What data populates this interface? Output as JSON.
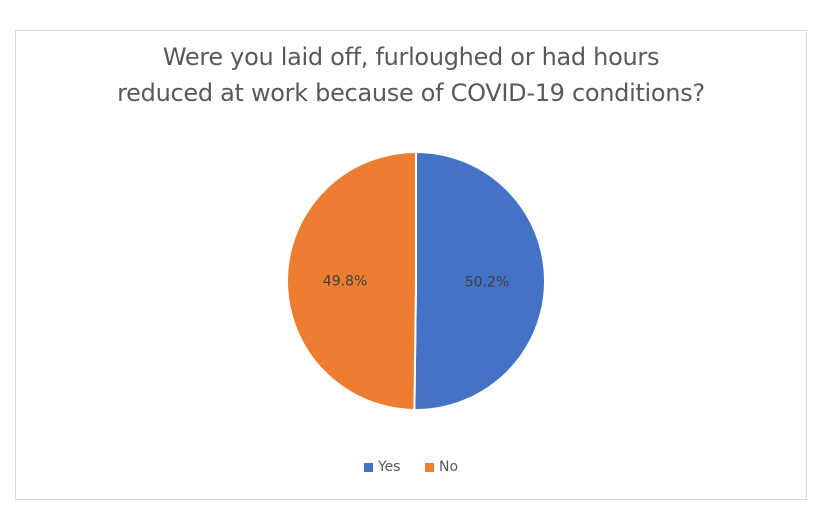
{
  "chart_data": {
    "type": "pie",
    "title": "Were you laid off, furloughed or had hours reduced at work because of COVID-19 conditions?",
    "title_lines": [
      "Were you laid off, furloughed or had hours",
      "reduced at work because of COVID-19 conditions?"
    ],
    "categories": [
      "Yes",
      "No"
    ],
    "values": [
      50.2,
      49.8
    ],
    "labels": [
      "50.2%",
      "49.8%"
    ],
    "colors": [
      "#4472c4",
      "#ed7d31"
    ],
    "legend_position": "bottom",
    "start_angle": 0
  },
  "legend": {
    "items": [
      {
        "label": "Yes",
        "color": "#4472c4"
      },
      {
        "label": "No",
        "color": "#ed7d31"
      }
    ]
  }
}
